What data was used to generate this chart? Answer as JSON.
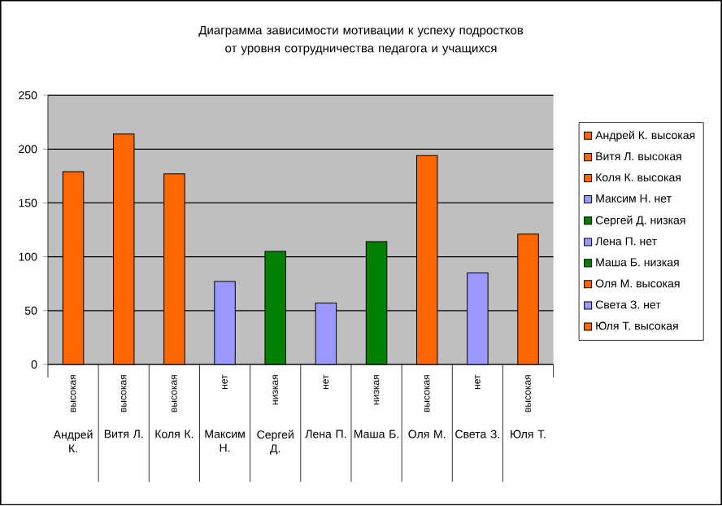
{
  "chart_data": {
    "type": "bar",
    "title": "Диаграмма зависимости мотивации к успеху подростков от уровня сотрудничества педагога и учащихся",
    "categories": [
      "Андрей К.",
      "Витя Л.",
      "Коля К.",
      "Максим Н.",
      "Сергей Д.",
      "Лена П.",
      "Маша Б.",
      "Оля М.",
      "Света З.",
      "Юля Т."
    ],
    "series": [
      {
        "name": "Андрей К. высокая",
        "color": "#ff6600",
        "values": [
          179,
          null,
          null,
          null,
          null,
          null,
          null,
          null,
          null,
          null
        ]
      },
      {
        "name": "Витя Л. высокая",
        "color": "#ff6600",
        "values": [
          null,
          214,
          null,
          null,
          null,
          null,
          null,
          null,
          null,
          null
        ]
      },
      {
        "name": "Коля К. высокая",
        "color": "#ff6600",
        "values": [
          null,
          null,
          177,
          null,
          null,
          null,
          null,
          null,
          null,
          null
        ]
      },
      {
        "name": "Максим Н. нет",
        "color": "#9999ff",
        "values": [
          null,
          null,
          null,
          77,
          null,
          null,
          null,
          null,
          null,
          null
        ]
      },
      {
        "name": "Сергей Д. низкая",
        "color": "#008000",
        "values": [
          null,
          null,
          null,
          null,
          105,
          null,
          null,
          null,
          null,
          null
        ]
      },
      {
        "name": "Лена П. нет",
        "color": "#9999ff",
        "values": [
          null,
          null,
          null,
          null,
          null,
          57,
          null,
          null,
          null,
          null
        ]
      },
      {
        "name": "Маша Б. низкая",
        "color": "#008000",
        "values": [
          null,
          null,
          null,
          null,
          null,
          null,
          114,
          null,
          null,
          null
        ]
      },
      {
        "name": "Оля М. высокая",
        "color": "#ff6600",
        "values": [
          null,
          null,
          null,
          null,
          null,
          null,
          null,
          194,
          null,
          null
        ]
      },
      {
        "name": "Света З. нет",
        "color": "#9999ff",
        "values": [
          null,
          null,
          null,
          null,
          null,
          null,
          null,
          null,
          85,
          null
        ]
      },
      {
        "name": "Юля Т. высокая",
        "color": "#ff6600",
        "values": [
          null,
          null,
          null,
          null,
          null,
          null,
          null,
          null,
          null,
          121
        ]
      }
    ],
    "annotations": [
      "высокая",
      "высокая",
      "высокая",
      "нет",
      "низкая",
      "нет",
      "низкая",
      "высокая",
      "нет",
      "высокая"
    ],
    "ylim": [
      0,
      250
    ],
    "yticks": [
      0,
      50,
      100,
      150,
      200,
      250
    ],
    "grid": "y",
    "legend": "right"
  }
}
